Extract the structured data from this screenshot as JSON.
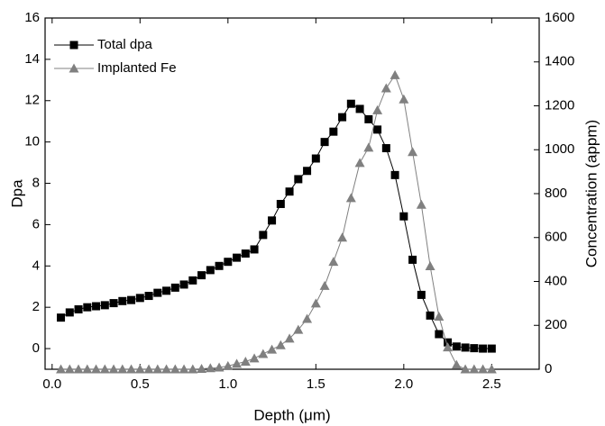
{
  "chart_data": {
    "type": "line",
    "x_label": "Depth (μm)",
    "y_label": "Dpa",
    "y2_label": "Concentration (appm)",
    "x": [
      0.05,
      0.1,
      0.15,
      0.2,
      0.25,
      0.3,
      0.35,
      0.4,
      0.45,
      0.5,
      0.55,
      0.6,
      0.65,
      0.7,
      0.75,
      0.8,
      0.85,
      0.9,
      0.95,
      1.0,
      1.05,
      1.1,
      1.15,
      1.2,
      1.25,
      1.3,
      1.35,
      1.4,
      1.45,
      1.5,
      1.55,
      1.6,
      1.65,
      1.7,
      1.75,
      1.8,
      1.85,
      1.9,
      1.95,
      2.0,
      2.05,
      2.1,
      2.15,
      2.2,
      2.25,
      2.3,
      2.35,
      2.4,
      2.45,
      2.5
    ],
    "series": [
      {
        "name": "Total dpa",
        "color": "#000000",
        "marker": "square",
        "values": [
          1.5,
          1.75,
          1.9,
          2.0,
          2.05,
          2.1,
          2.2,
          2.3,
          2.35,
          2.45,
          2.55,
          2.7,
          2.8,
          2.95,
          3.1,
          3.3,
          3.55,
          3.8,
          4.0,
          4.2,
          4.4,
          4.6,
          4.8,
          5.5,
          6.2,
          7.0,
          7.6,
          8.2,
          8.6,
          9.2,
          10.0,
          10.5,
          11.2,
          11.85,
          11.6,
          11.1,
          10.6,
          9.7,
          8.4,
          6.4,
          4.3,
          2.6,
          1.6,
          0.7,
          0.3,
          0.1,
          0.05,
          0.02,
          0,
          0
        ]
      },
      {
        "name": "Implanted Fe",
        "color": "#808080",
        "marker": "triangle",
        "axis": "y2",
        "values": [
          0,
          0,
          0,
          0,
          0,
          0,
          0,
          0,
          0,
          0,
          0,
          0,
          0,
          0,
          0,
          0,
          2,
          5,
          8,
          15,
          25,
          35,
          50,
          70,
          90,
          110,
          140,
          180,
          230,
          300,
          380,
          490,
          600,
          780,
          940,
          1010,
          1180,
          1280,
          1340,
          1230,
          990,
          750,
          470,
          240,
          100,
          20,
          0,
          0,
          0,
          0
        ]
      }
    ],
    "xlim": [
      -0.04,
      2.77
    ],
    "xticks": [
      {
        "value": 0,
        "label": "0.0"
      },
      {
        "value": 0.5,
        "label": "0.5"
      },
      {
        "value": 1,
        "label": "1.0"
      },
      {
        "value": 1.5,
        "label": "1.5"
      },
      {
        "value": 2,
        "label": "2.0"
      },
      {
        "value": 2.5,
        "label": "2.5"
      }
    ],
    "ylim": [
      -1,
      16
    ],
    "yticks": [
      0,
      2,
      4,
      6,
      8,
      10,
      12,
      14,
      16
    ],
    "y2lim": [
      0,
      1600
    ],
    "y2ticks": [
      0,
      200,
      400,
      600,
      800,
      1000,
      1200,
      1400,
      1600
    ],
    "legend": "upper left"
  }
}
